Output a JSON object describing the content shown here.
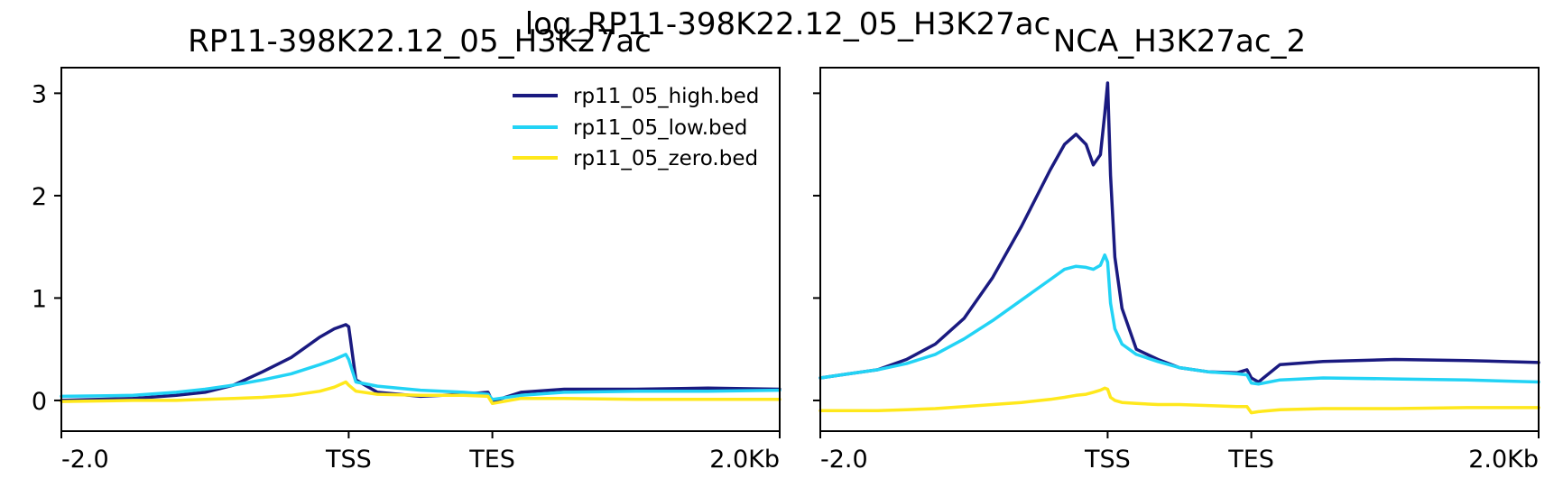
{
  "suptitle": "log_RP11-398K22.12_05_H3K27ac",
  "colors": {
    "high": "#1a1a80",
    "low": "#22d3f5",
    "zero": "#ffe81c"
  },
  "chart_data": [
    {
      "type": "line",
      "title": "RP11-398K22.12_05_H3K27ac",
      "x_tick_labels": [
        "-2.0",
        "TSS",
        "TES",
        "2.0Kb"
      ],
      "x_tick_positions": [
        0,
        200,
        300,
        500
      ],
      "xlim": [
        0,
        500
      ],
      "ylim": [
        -0.3,
        3.25
      ],
      "y_ticks": [
        0,
        1,
        2,
        3
      ],
      "legend": {
        "placement": "top-right",
        "entries": [
          "rp11_05_high.bed",
          "rp11_05_low.bed",
          "rp11_05_zero.bed"
        ]
      },
      "series": [
        {
          "name": "rp11_05_high.bed",
          "color": "#1a1a80",
          "x": [
            0,
            50,
            80,
            100,
            120,
            140,
            160,
            180,
            190,
            198,
            200,
            205,
            220,
            250,
            280,
            297,
            300,
            320,
            350,
            400,
            450,
            500
          ],
          "y": [
            0.0,
            0.02,
            0.05,
            0.08,
            0.15,
            0.28,
            0.42,
            0.62,
            0.7,
            0.74,
            0.72,
            0.2,
            0.08,
            0.04,
            0.06,
            0.08,
            -0.01,
            0.08,
            0.11,
            0.11,
            0.12,
            0.11
          ]
        },
        {
          "name": "rp11_05_low.bed",
          "color": "#22d3f5",
          "x": [
            0,
            50,
            80,
            100,
            120,
            140,
            160,
            180,
            190,
            198,
            200,
            205,
            220,
            250,
            280,
            297,
            300,
            320,
            350,
            400,
            450,
            500
          ],
          "y": [
            0.04,
            0.05,
            0.08,
            0.11,
            0.15,
            0.2,
            0.26,
            0.35,
            0.4,
            0.45,
            0.4,
            0.18,
            0.14,
            0.1,
            0.08,
            0.06,
            0.01,
            0.05,
            0.08,
            0.09,
            0.09,
            0.1
          ]
        },
        {
          "name": "rp11_05_zero.bed",
          "color": "#ffe81c",
          "x": [
            0,
            50,
            80,
            100,
            120,
            140,
            160,
            180,
            190,
            198,
            200,
            205,
            220,
            250,
            280,
            297,
            300,
            320,
            350,
            400,
            450,
            500
          ],
          "y": [
            -0.01,
            0.0,
            0.0,
            0.01,
            0.02,
            0.03,
            0.05,
            0.09,
            0.13,
            0.18,
            0.15,
            0.09,
            0.06,
            0.05,
            0.05,
            0.04,
            -0.03,
            0.02,
            0.02,
            0.01,
            0.01,
            0.01
          ]
        }
      ]
    },
    {
      "type": "line",
      "title": "NCA_H3K27ac_2",
      "x_tick_labels": [
        "-2.0",
        "TSS",
        "TES",
        "2.0Kb"
      ],
      "x_tick_positions": [
        0,
        200,
        300,
        500
      ],
      "xlim": [
        0,
        500
      ],
      "ylim": [
        -0.3,
        3.25
      ],
      "y_ticks": [
        0,
        1,
        2,
        3
      ],
      "series": [
        {
          "name": "rp11_05_high.bed",
          "color": "#1a1a80",
          "x": [
            0,
            20,
            40,
            60,
            80,
            100,
            120,
            140,
            160,
            170,
            178,
            185,
            190,
            195,
            198,
            200,
            202,
            205,
            210,
            220,
            235,
            250,
            270,
            290,
            297,
            300,
            305,
            320,
            350,
            400,
            450,
            500
          ],
          "y": [
            0.22,
            0.26,
            0.3,
            0.4,
            0.55,
            0.8,
            1.2,
            1.7,
            2.25,
            2.5,
            2.6,
            2.5,
            2.3,
            2.4,
            2.8,
            3.1,
            2.2,
            1.4,
            0.9,
            0.5,
            0.4,
            0.32,
            0.28,
            0.27,
            0.3,
            0.22,
            0.18,
            0.35,
            0.38,
            0.4,
            0.39,
            0.37
          ]
        },
        {
          "name": "rp11_05_low.bed",
          "color": "#22d3f5",
          "x": [
            0,
            20,
            40,
            60,
            80,
            100,
            120,
            140,
            160,
            170,
            178,
            185,
            190,
            195,
            198,
            200,
            202,
            205,
            210,
            220,
            235,
            250,
            270,
            290,
            297,
            300,
            305,
            320,
            350,
            400,
            450,
            500
          ],
          "y": [
            0.22,
            0.26,
            0.3,
            0.36,
            0.45,
            0.6,
            0.78,
            0.98,
            1.18,
            1.28,
            1.31,
            1.3,
            1.28,
            1.32,
            1.42,
            1.35,
            0.95,
            0.7,
            0.55,
            0.45,
            0.38,
            0.32,
            0.28,
            0.26,
            0.25,
            0.17,
            0.16,
            0.2,
            0.22,
            0.21,
            0.2,
            0.18
          ]
        },
        {
          "name": "rp11_05_zero.bed",
          "color": "#ffe81c",
          "x": [
            0,
            20,
            40,
            60,
            80,
            100,
            120,
            140,
            160,
            170,
            178,
            185,
            190,
            195,
            198,
            200,
            202,
            205,
            210,
            220,
            235,
            250,
            270,
            290,
            297,
            300,
            305,
            320,
            350,
            400,
            450,
            500
          ],
          "y": [
            -0.1,
            -0.1,
            -0.1,
            -0.09,
            -0.08,
            -0.06,
            -0.04,
            -0.02,
            0.01,
            0.03,
            0.05,
            0.06,
            0.08,
            0.1,
            0.12,
            0.11,
            0.03,
            0.0,
            -0.02,
            -0.03,
            -0.04,
            -0.04,
            -0.05,
            -0.06,
            -0.06,
            -0.12,
            -0.11,
            -0.09,
            -0.08,
            -0.08,
            -0.07,
            -0.07
          ]
        }
      ]
    }
  ]
}
